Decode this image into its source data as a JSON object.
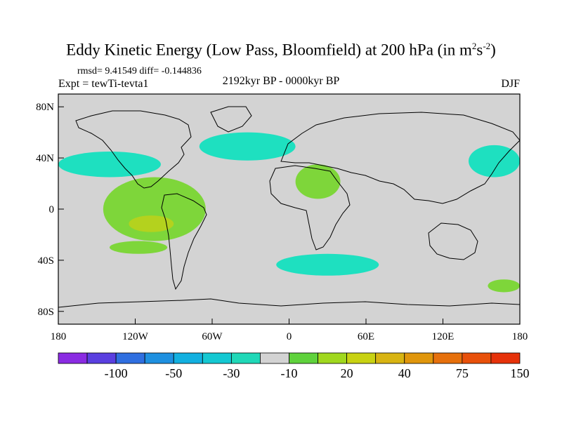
{
  "chart_data": {
    "type": "heatmap",
    "title": "Eddy Kinetic Energy (Low Pass, Bloomfield) at 200 hPa (in m",
    "title_unit_sup1": "2",
    "title_unit_mid": "s",
    "title_unit_sup2": "-2",
    "title_close": ")",
    "stats": "rmsd= 9.41549 diff= -0.144836",
    "experiment": "Expt = tewTi-tevta1",
    "period": "2192kyr BP - 0000kyr BP",
    "season": "DJF",
    "xlim": [
      -180,
      180
    ],
    "ylim": [
      -90,
      90
    ],
    "x_ticks": [
      {
        "value": -180,
        "label": "180"
      },
      {
        "value": -120,
        "label": "120W"
      },
      {
        "value": -60,
        "label": "60W"
      },
      {
        "value": 0,
        "label": "0"
      },
      {
        "value": 60,
        "label": "60E"
      },
      {
        "value": 120,
        "label": "120E"
      },
      {
        "value": 180,
        "label": "180"
      }
    ],
    "y_ticks": [
      {
        "value": 80,
        "label": "80N"
      },
      {
        "value": 40,
        "label": "40N"
      },
      {
        "value": 0,
        "label": "0"
      },
      {
        "value": -40,
        "label": "40S"
      },
      {
        "value": -80,
        "label": "80S"
      }
    ],
    "colorbar": {
      "colors": [
        "#8a2be2",
        "#5a3fe0",
        "#2f6fe0",
        "#1e90e0",
        "#12b0e0",
        "#14c8d2",
        "#20d8b8",
        "#d3d3d3",
        "#5fd23c",
        "#a0d81e",
        "#c8d212",
        "#d8b412",
        "#e0960c",
        "#e6700c",
        "#e8500a",
        "#e6320a"
      ],
      "labels": [
        "-100",
        "-50",
        "-30",
        "-10",
        "20",
        "40",
        "75",
        "150"
      ]
    },
    "regions": [
      {
        "name": "north-pacific-cyan",
        "lon": [
          -180,
          -100
        ],
        "lat": [
          25,
          45
        ],
        "level": -10
      },
      {
        "name": "north-atlantic-cyan",
        "lon": [
          -70,
          5
        ],
        "lat": [
          38,
          60
        ],
        "level": -10
      },
      {
        "name": "east-pacific-positive",
        "lon": [
          -145,
          -65
        ],
        "lat": [
          -25,
          25
        ],
        "level": 20
      },
      {
        "name": "east-pacific-core",
        "lon": [
          -125,
          -90
        ],
        "lat": [
          -18,
          -5
        ],
        "level": 40
      },
      {
        "name": "south-pacific-positive",
        "lon": [
          -140,
          -95
        ],
        "lat": [
          -35,
          -25
        ],
        "level": 20
      },
      {
        "name": "north-africa-positive",
        "lon": [
          5,
          40
        ],
        "lat": [
          8,
          35
        ],
        "level": 20
      },
      {
        "name": "south-indian-cyan",
        "lon": [
          -10,
          70
        ],
        "lat": [
          -52,
          -35
        ],
        "level": -10
      },
      {
        "name": "north-west-pacific-cyan",
        "lon": [
          140,
          180
        ],
        "lat": [
          25,
          50
        ],
        "level": -10
      },
      {
        "name": "south-west-pacific-positive",
        "lon": [
          155,
          180
        ],
        "lat": [
          -65,
          -55
        ],
        "level": 20
      }
    ]
  }
}
